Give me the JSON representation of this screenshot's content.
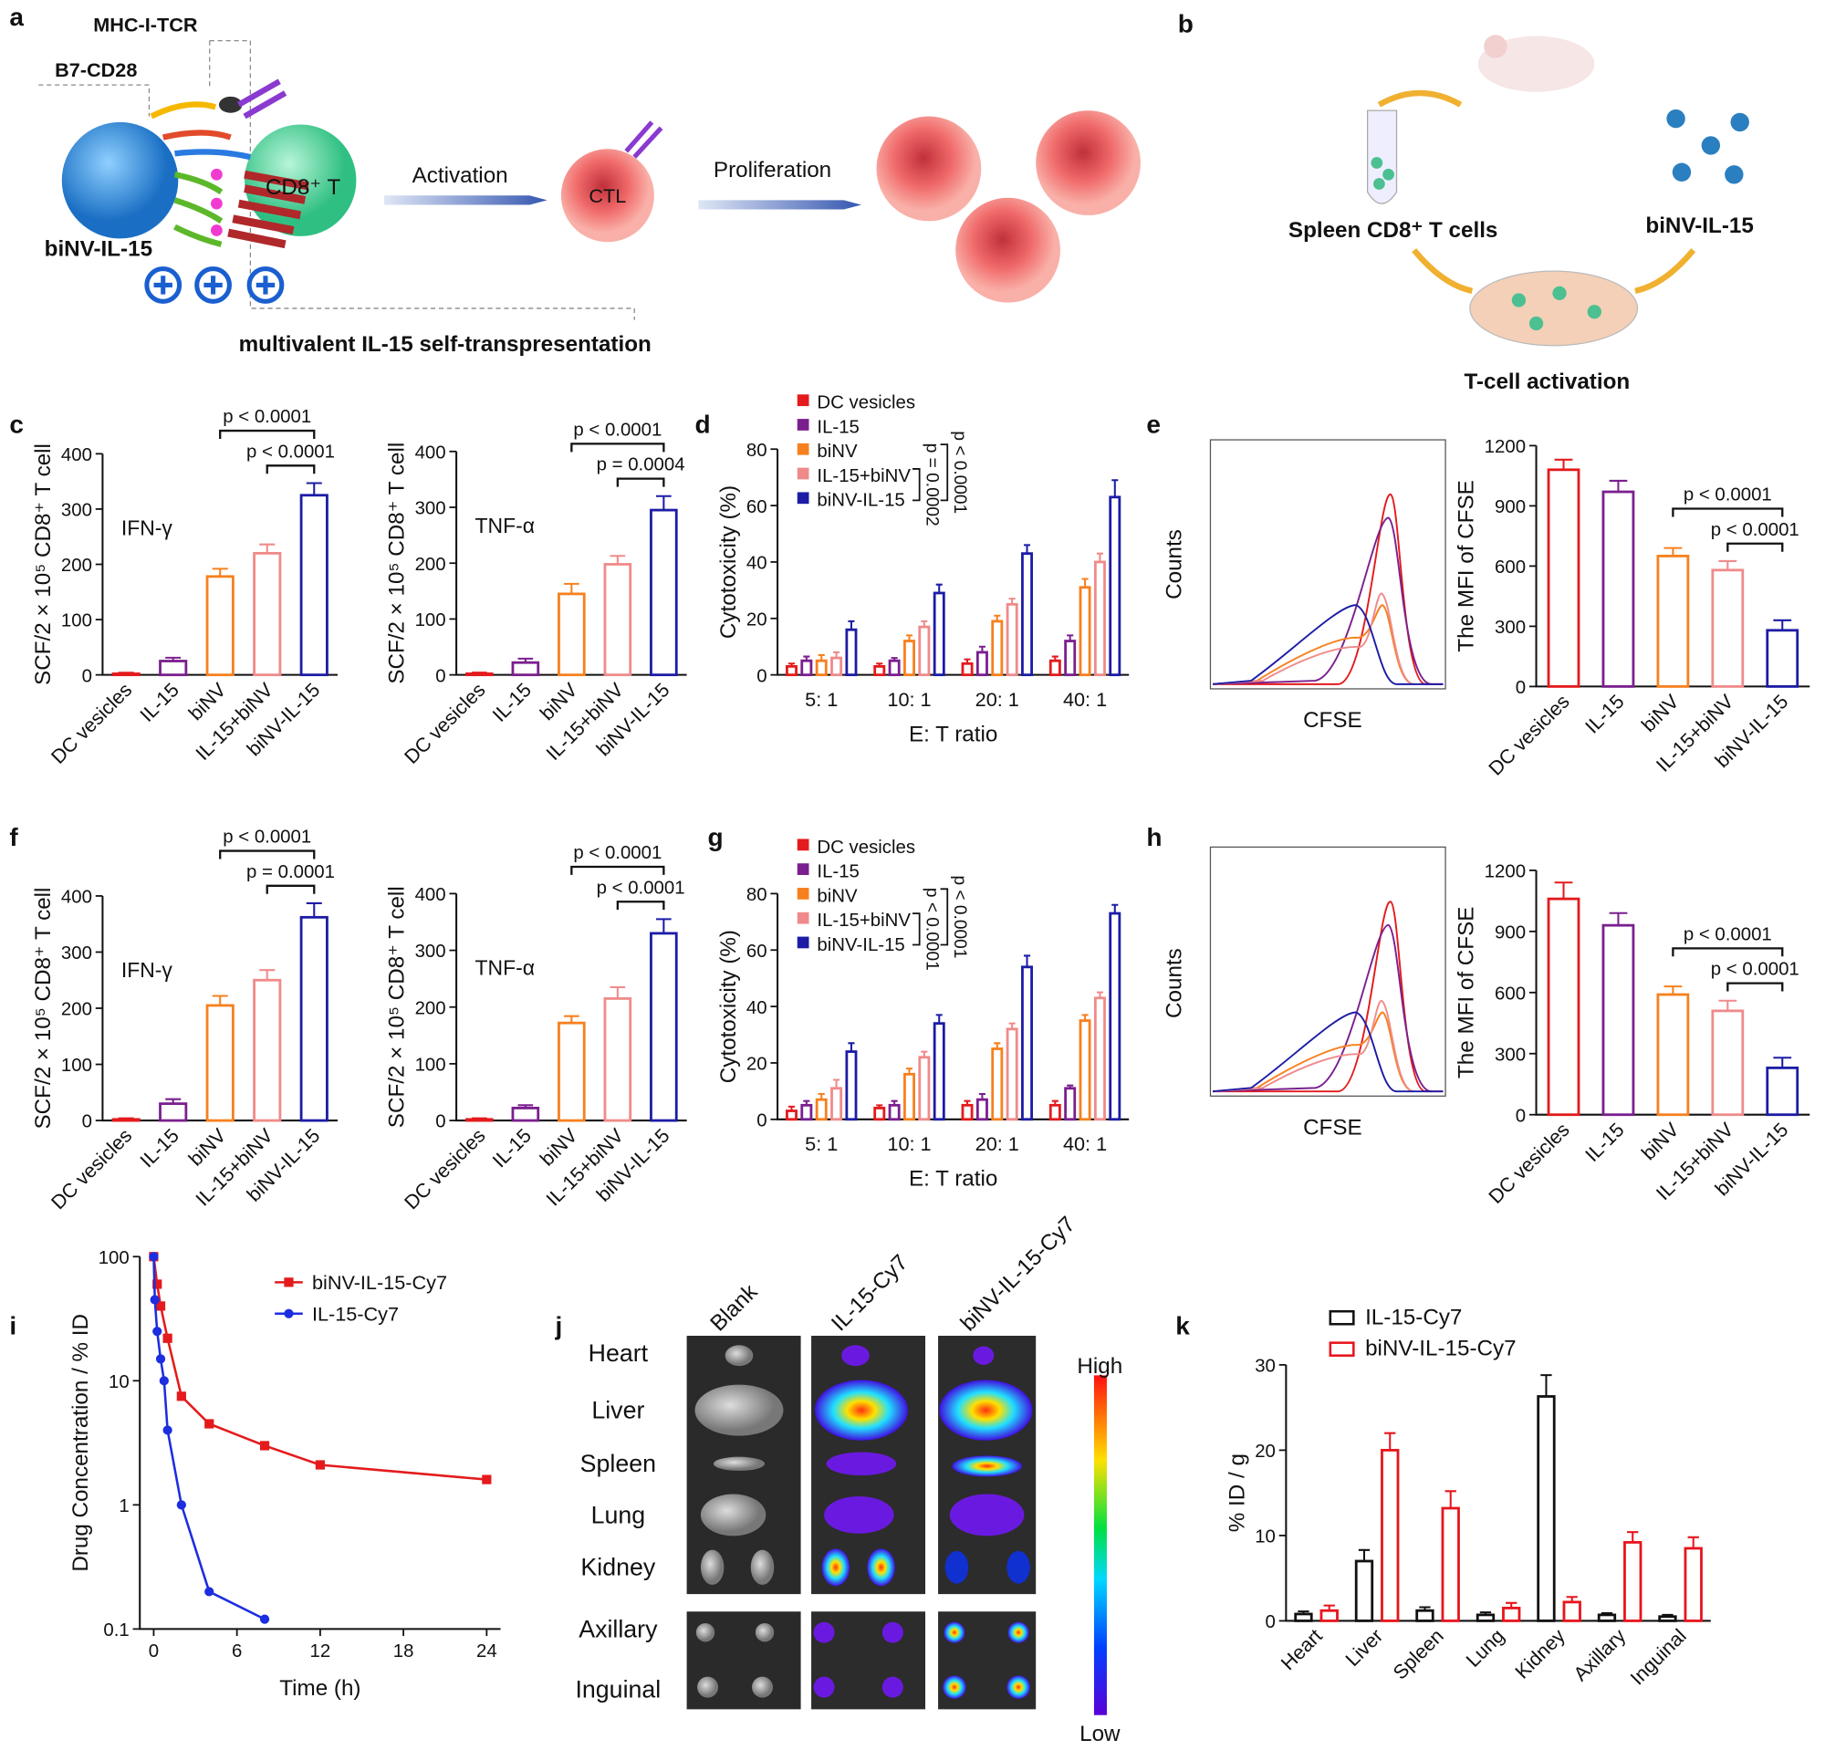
{
  "panel_labels": [
    "a",
    "b",
    "c",
    "d",
    "e",
    "f",
    "g",
    "h",
    "i",
    "j",
    "k"
  ],
  "diagram_a": {
    "labels": [
      "MHC-I-TCR",
      "B7-CD28",
      "CD8⁺ T",
      "biNV-IL-15",
      "Activation",
      "CTL",
      "Proliferation",
      "multivalent IL-15 self-transpresentation"
    ]
  },
  "diagram_b": {
    "labels": [
      "Spleen CD8⁺ T cells",
      "biNV-IL-15",
      "T-cell activation"
    ]
  },
  "flow_plots": [
    {
      "ylabel": "Counts",
      "xlabel": "CFSE"
    },
    {
      "ylabel": "Counts",
      "xlabel": "CFSE"
    }
  ],
  "imaging": {
    "columns": [
      "Blank",
      "IL-15-Cy7",
      "biNV-IL-15-Cy7"
    ],
    "rows": [
      "Heart",
      "Liver",
      "Spleen",
      "Lung",
      "Kidney",
      "Axillary",
      "Inguinal"
    ],
    "scale_high": "High",
    "scale_low": "Low"
  },
  "chart_data": [
    {
      "type": "bar",
      "ylabel": "SCF/2 × 10⁵ CD8⁺ T cell",
      "inner_label": "IFN-γ",
      "categories": [
        "DC vesicles",
        "IL-15",
        "biNV",
        "IL-15+biNV",
        "biNV-IL-15"
      ],
      "values": [
        2,
        25,
        178,
        220,
        325
      ],
      "errors": [
        2,
        6,
        14,
        16,
        22
      ],
      "colors": [
        "#e41a1c",
        "#7a1f8e",
        "#f7801e",
        "#f08a8a",
        "#1c1ca6"
      ],
      "ylim": [
        0,
        400
      ],
      "yticks": [
        0,
        100,
        200,
        300,
        400
      ],
      "brackets": [
        {
          "from": "biNV",
          "to": "biNV-IL-15",
          "label": "p < 0.0001"
        },
        {
          "from": "IL-15+biNV",
          "to": "biNV-IL-15",
          "label": "p < 0.0001"
        }
      ]
    },
    {
      "type": "bar",
      "ylabel": "SCF/2 × 10⁵ CD8⁺ T cell",
      "inner_label": "TNF-α",
      "categories": [
        "DC vesicles",
        "IL-15",
        "biNV",
        "IL-15+biNV",
        "biNV-IL-15"
      ],
      "values": [
        2,
        22,
        145,
        198,
        295
      ],
      "errors": [
        2,
        7,
        18,
        15,
        25
      ],
      "colors": [
        "#e41a1c",
        "#7a1f8e",
        "#f7801e",
        "#f08a8a",
        "#1c1ca6"
      ],
      "ylim": [
        0,
        400
      ],
      "yticks": [
        0,
        100,
        200,
        300,
        400
      ],
      "brackets": [
        {
          "from": "biNV",
          "to": "biNV-IL-15",
          "label": "p < 0.0001"
        },
        {
          "from": "IL-15+biNV",
          "to": "biNV-IL-15",
          "label": "p = 0.0004"
        }
      ]
    },
    {
      "type": "bar",
      "ylabel": "Cytotoxicity (%)",
      "xlabel": "E: T ratio",
      "categories": [
        "5: 1",
        "10: 1",
        "20: 1",
        "40: 1"
      ],
      "series": [
        {
          "name": "DC vesicles",
          "color": "#e41a1c",
          "values": [
            3,
            3,
            4,
            5
          ],
          "errors": [
            1,
            1,
            1.5,
            1.5
          ]
        },
        {
          "name": "IL-15",
          "color": "#7a1f8e",
          "values": [
            5,
            5,
            8,
            12
          ],
          "errors": [
            1.5,
            1,
            2,
            2
          ]
        },
        {
          "name": "biNV",
          "color": "#f7801e",
          "values": [
            5,
            12,
            19,
            31
          ],
          "errors": [
            2,
            2,
            2,
            3
          ]
        },
        {
          "name": "IL-15+biNV",
          "color": "#f08a8a",
          "values": [
            6,
            17,
            25,
            40
          ],
          "errors": [
            2,
            2,
            2,
            3
          ]
        },
        {
          "name": "biNV-IL-15",
          "color": "#1c1ca6",
          "values": [
            16,
            29,
            43,
            63
          ],
          "errors": [
            3,
            3,
            3,
            6
          ]
        }
      ],
      "ylim": [
        0,
        80
      ],
      "yticks": [
        0,
        20,
        40,
        60,
        80
      ],
      "legend": "upper left",
      "annotations": [
        "p = 0.0002",
        "p < 0.0001"
      ]
    },
    {
      "type": "bar",
      "ylabel": "The MFI of CFSE",
      "categories": [
        "DC vesicles",
        "IL-15",
        "biNV",
        "IL-15+biNV",
        "biNV-IL-15"
      ],
      "values": [
        1080,
        970,
        650,
        580,
        280
      ],
      "errors": [
        50,
        55,
        40,
        45,
        50
      ],
      "colors": [
        "#e41a1c",
        "#7a1f8e",
        "#f7801e",
        "#f08a8a",
        "#1c1ca6"
      ],
      "ylim": [
        0,
        1200
      ],
      "yticks": [
        0,
        300,
        600,
        900,
        1200
      ],
      "brackets": [
        {
          "from": "biNV",
          "to": "biNV-IL-15",
          "label": "p < 0.0001"
        },
        {
          "from": "IL-15+biNV",
          "to": "biNV-IL-15",
          "label": "p < 0.0001"
        }
      ]
    },
    {
      "type": "bar",
      "ylabel": "SCF/2 × 10⁵ CD8⁺ T cell",
      "inner_label": "IFN-γ",
      "categories": [
        "DC vesicles",
        "IL-15",
        "biNV",
        "IL-15+biNV",
        "biNV-IL-15"
      ],
      "values": [
        2,
        30,
        205,
        250,
        362
      ],
      "errors": [
        2,
        8,
        17,
        18,
        25
      ],
      "colors": [
        "#e41a1c",
        "#7a1f8e",
        "#f7801e",
        "#f08a8a",
        "#1c1ca6"
      ],
      "ylim": [
        0,
        400
      ],
      "yticks": [
        0,
        100,
        200,
        300,
        400
      ],
      "brackets": [
        {
          "from": "biNV",
          "to": "biNV-IL-15",
          "label": "p < 0.0001"
        },
        {
          "from": "IL-15+biNV",
          "to": "biNV-IL-15",
          "label": "p = 0.0001"
        }
      ]
    },
    {
      "type": "bar",
      "ylabel": "SCF/2 × 10⁵ CD8⁺ T cell",
      "inner_label": "TNF-α",
      "categories": [
        "DC vesicles",
        "IL-15",
        "biNV",
        "IL-15+biNV",
        "biNV-IL-15"
      ],
      "values": [
        2,
        22,
        172,
        215,
        330
      ],
      "errors": [
        2,
        5,
        12,
        20,
        25
      ],
      "colors": [
        "#e41a1c",
        "#7a1f8e",
        "#f7801e",
        "#f08a8a",
        "#1c1ca6"
      ],
      "ylim": [
        0,
        400
      ],
      "yticks": [
        0,
        100,
        200,
        300,
        400
      ],
      "brackets": [
        {
          "from": "biNV",
          "to": "biNV-IL-15",
          "label": "p < 0.0001"
        },
        {
          "from": "IL-15+biNV",
          "to": "biNV-IL-15",
          "label": "p < 0.0001"
        }
      ]
    },
    {
      "type": "bar",
      "ylabel": "Cytotoxicity (%)",
      "xlabel": "E: T ratio",
      "categories": [
        "5: 1",
        "10: 1",
        "20: 1",
        "40: 1"
      ],
      "series": [
        {
          "name": "DC vesicles",
          "color": "#e41a1c",
          "values": [
            3,
            4,
            5,
            5
          ],
          "errors": [
            1.5,
            1,
            1.5,
            1.5
          ]
        },
        {
          "name": "IL-15",
          "color": "#7a1f8e",
          "values": [
            5,
            5,
            7,
            11
          ],
          "errors": [
            1.5,
            1.5,
            2,
            1
          ]
        },
        {
          "name": "biNV",
          "color": "#f7801e",
          "values": [
            7,
            16,
            25,
            35
          ],
          "errors": [
            2,
            2,
            2,
            2
          ]
        },
        {
          "name": "IL-15+biNV",
          "color": "#f08a8a",
          "values": [
            11,
            22,
            32,
            43
          ],
          "errors": [
            3,
            2,
            2,
            2
          ]
        },
        {
          "name": "biNV-IL-15",
          "color": "#1c1ca6",
          "values": [
            24,
            34,
            54,
            73
          ],
          "errors": [
            3,
            3,
            4,
            3
          ]
        }
      ],
      "ylim": [
        0,
        80
      ],
      "yticks": [
        0,
        20,
        40,
        60,
        80
      ],
      "legend": "upper left",
      "annotations": [
        "p < 0.0001",
        "p < 0.0001"
      ]
    },
    {
      "type": "bar",
      "ylabel": "The MFI of CFSE",
      "categories": [
        "DC vesicles",
        "IL-15",
        "biNV",
        "IL-15+biNV",
        "biNV-IL-15"
      ],
      "values": [
        1060,
        930,
        590,
        510,
        230
      ],
      "errors": [
        80,
        60,
        40,
        50,
        50
      ],
      "colors": [
        "#e41a1c",
        "#7a1f8e",
        "#f7801e",
        "#f08a8a",
        "#1c1ca6"
      ],
      "ylim": [
        0,
        1200
      ],
      "yticks": [
        0,
        300,
        600,
        900,
        1200
      ],
      "brackets": [
        {
          "from": "biNV",
          "to": "biNV-IL-15",
          "label": "p < 0.0001"
        },
        {
          "from": "IL-15+biNV",
          "to": "biNV-IL-15",
          "label": "p < 0.0001"
        }
      ]
    },
    {
      "type": "line",
      "ylabel": "Drug Concentration / % ID",
      "xlabel": "Time (h)",
      "yscale": "log",
      "xlim": [
        -1,
        25
      ],
      "ylim": [
        0.1,
        100
      ],
      "xticks": [
        0,
        6,
        12,
        18,
        24
      ],
      "yticks": [
        0.1,
        1,
        10,
        100
      ],
      "legend": "upper right",
      "series": [
        {
          "name": "biNV-IL-15-Cy7",
          "color": "#e41a1c",
          "marker": "square",
          "x": [
            0,
            0.25,
            0.5,
            1,
            2,
            4,
            8,
            12,
            24
          ],
          "values": [
            100,
            60,
            40,
            22,
            7.5,
            4.5,
            3,
            2.1,
            1.6
          ]
        },
        {
          "name": "IL-15-Cy7",
          "color": "#1c2ee0",
          "marker": "circle",
          "x": [
            0,
            0.083,
            0.25,
            0.5,
            0.75,
            1,
            2,
            4,
            8
          ],
          "values": [
            100,
            45,
            25,
            15,
            10,
            4,
            1,
            0.2,
            0.12
          ]
        }
      ]
    },
    {
      "type": "bar",
      "ylabel": "% ID / g",
      "categories": [
        "Heart",
        "Liver",
        "Spleen",
        "Lung",
        "Kidney",
        "Axillary",
        "Inguinal"
      ],
      "series": [
        {
          "name": "IL-15-Cy7",
          "color": "#111111",
          "values": [
            0.8,
            7,
            1.2,
            0.7,
            26.3,
            0.7,
            0.5
          ],
          "errors": [
            0.3,
            1.3,
            0.4,
            0.3,
            2.5,
            0.2,
            0.2
          ]
        },
        {
          "name": "biNV-IL-15-Cy7",
          "color": "#e8141c",
          "values": [
            1.2,
            20,
            13.2,
            1.5,
            2.2,
            9.2,
            8.5
          ],
          "errors": [
            0.6,
            2,
            2,
            0.6,
            0.6,
            1.2,
            1.3
          ]
        }
      ],
      "ylim": [
        0,
        30
      ],
      "yticks": [
        0,
        10,
        20,
        30
      ],
      "legend": "upper left"
    }
  ]
}
